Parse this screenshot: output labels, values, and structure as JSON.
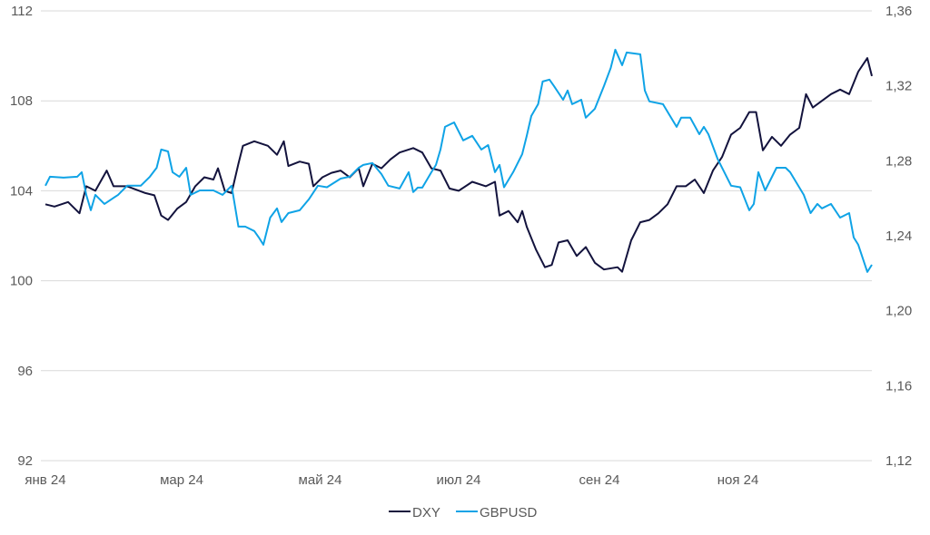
{
  "chart_data": {
    "type": "line",
    "title": "",
    "x_tick_labels": [
      {
        "day": 0,
        "label": "янв 24"
      },
      {
        "day": 60,
        "label": "мар 24"
      },
      {
        "day": 121,
        "label": "май 24"
      },
      {
        "day": 182,
        "label": "июл 24"
      },
      {
        "day": 244,
        "label": "сен 24"
      },
      {
        "day": 305,
        "label": "ноя 24"
      }
    ],
    "x_range_days": [
      0,
      364
    ],
    "left_axis": {
      "ylim": [
        92,
        112
      ],
      "ticks": [
        "92",
        "96",
        "100",
        "104",
        "108",
        "112"
      ],
      "tick_values": [
        92,
        96,
        100,
        104,
        108,
        112
      ]
    },
    "right_axis": {
      "ylim": [
        1.12,
        1.36
      ],
      "ticks": [
        "1,12",
        "1,16",
        "1,20",
        "1,24",
        "1,28",
        "1,32",
        "1,36"
      ],
      "tick_values": [
        1.12,
        1.16,
        1.2,
        1.24,
        1.28,
        1.32,
        1.36
      ]
    },
    "grid": "horizontal",
    "legend_position": "bottom-center",
    "series": [
      {
        "name": "DXY",
        "axis": "left",
        "color": "#13133d",
        "x": [
          0,
          4,
          10,
          15,
          18,
          22,
          27,
          30,
          36,
          44,
          48,
          51,
          54,
          58,
          62,
          66,
          70,
          74,
          76,
          79,
          82,
          85,
          87,
          92,
          98,
          102,
          105,
          107,
          112,
          116,
          118,
          122,
          126,
          130,
          134,
          138,
          140,
          144,
          148,
          152,
          156,
          162,
          166,
          170,
          174,
          178,
          182,
          188,
          194,
          198,
          200,
          204,
          208,
          210,
          212,
          216,
          220,
          223,
          226,
          230,
          234,
          238,
          242,
          246,
          252,
          254,
          258,
          262,
          266,
          270,
          274,
          278,
          282,
          286,
          290,
          294,
          298,
          302,
          306,
          310,
          313,
          316,
          320,
          324,
          328,
          332,
          335,
          338,
          342,
          346,
          350,
          354,
          358,
          362,
          364
        ],
        "y": [
          103.4,
          103.3,
          103.5,
          103.0,
          104.2,
          104.0,
          104.9,
          104.2,
          104.2,
          103.9,
          103.8,
          102.9,
          102.7,
          103.2,
          103.5,
          104.2,
          104.6,
          104.5,
          105.0,
          104.0,
          103.9,
          105.2,
          106.0,
          106.2,
          106.0,
          105.6,
          106.2,
          105.1,
          105.3,
          105.2,
          104.2,
          104.6,
          104.8,
          104.9,
          104.6,
          105.0,
          104.2,
          105.2,
          105.0,
          105.4,
          105.7,
          105.9,
          105.7,
          105.0,
          104.9,
          104.1,
          104.0,
          104.4,
          104.2,
          104.4,
          102.9,
          103.1,
          102.6,
          103.1,
          102.4,
          101.4,
          100.6,
          100.7,
          101.7,
          101.8,
          101.1,
          101.5,
          100.8,
          100.5,
          100.6,
          100.4,
          101.8,
          102.6,
          102.7,
          103.0,
          103.4,
          104.2,
          104.2,
          104.5,
          103.9,
          104.9,
          105.5,
          106.5,
          106.8,
          107.5,
          107.5,
          105.8,
          106.4,
          106.0,
          106.5,
          106.8,
          108.3,
          107.7,
          108.0,
          108.3,
          108.5,
          108.3,
          109.3,
          109.9,
          109.1
        ]
      },
      {
        "name": "GBPUSD",
        "axis": "right",
        "color": "#0fa3e6",
        "x": [
          0,
          2,
          8,
          14,
          16,
          18,
          20,
          22,
          26,
          32,
          36,
          42,
          46,
          49,
          51,
          54,
          56,
          59,
          62,
          64,
          68,
          74,
          78,
          82,
          85,
          88,
          92,
          94,
          96,
          99,
          102,
          104,
          107,
          112,
          116,
          120,
          124,
          130,
          134,
          138,
          140,
          144,
          148,
          151,
          156,
          160,
          162,
          164,
          166,
          170,
          172,
          174,
          176,
          180,
          184,
          188,
          192,
          195,
          198,
          200,
          202,
          206,
          210,
          212,
          214,
          217,
          219,
          222,
          224,
          228,
          230,
          232,
          236,
          238,
          242,
          246,
          249,
          251,
          254,
          256,
          262,
          264,
          266,
          272,
          278,
          280,
          284,
          288,
          290,
          292,
          296,
          302,
          306,
          310,
          312,
          314,
          317,
          322,
          326,
          328,
          334,
          337,
          340,
          342,
          346,
          350,
          354,
          356,
          358,
          362,
          364
        ],
        "y": [
          1.2667,
          1.2715,
          1.271,
          1.2715,
          1.2739,
          1.2618,
          1.2536,
          1.2618,
          1.257,
          1.2618,
          1.2667,
          1.2667,
          1.2715,
          1.2763,
          1.286,
          1.285,
          1.2739,
          1.2715,
          1.2763,
          1.2618,
          1.2642,
          1.2642,
          1.2618,
          1.2667,
          1.2449,
          1.2449,
          1.2425,
          1.2391,
          1.2352,
          1.2497,
          1.2546,
          1.2473,
          1.2521,
          1.2536,
          1.2594,
          1.2667,
          1.2659,
          1.2705,
          1.2715,
          1.2763,
          1.2778,
          1.2788,
          1.2729,
          1.2667,
          1.2652,
          1.2739,
          1.2633,
          1.2657,
          1.2657,
          1.2739,
          1.2778,
          1.286,
          1.2981,
          1.3005,
          1.2909,
          1.2933,
          1.286,
          1.2884,
          1.2739,
          1.2778,
          1.2659,
          1.2739,
          1.2836,
          1.2933,
          1.3039,
          1.3102,
          1.3223,
          1.3233,
          1.3199,
          1.3126,
          1.3175,
          1.3102,
          1.3126,
          1.303,
          1.3078,
          1.3199,
          1.3296,
          1.3393,
          1.331,
          1.3378,
          1.3368,
          1.3175,
          1.3117,
          1.3102,
          1.2981,
          1.303,
          1.303,
          1.2942,
          1.2981,
          1.2942,
          1.2812,
          1.2667,
          1.2659,
          1.2536,
          1.257,
          1.2739,
          1.2642,
          1.2763,
          1.2763,
          1.2739,
          1.2618,
          1.2521,
          1.257,
          1.2546,
          1.257,
          1.2497,
          1.2521,
          1.2391,
          1.2352,
          1.2207,
          1.2245
        ]
      }
    ]
  }
}
